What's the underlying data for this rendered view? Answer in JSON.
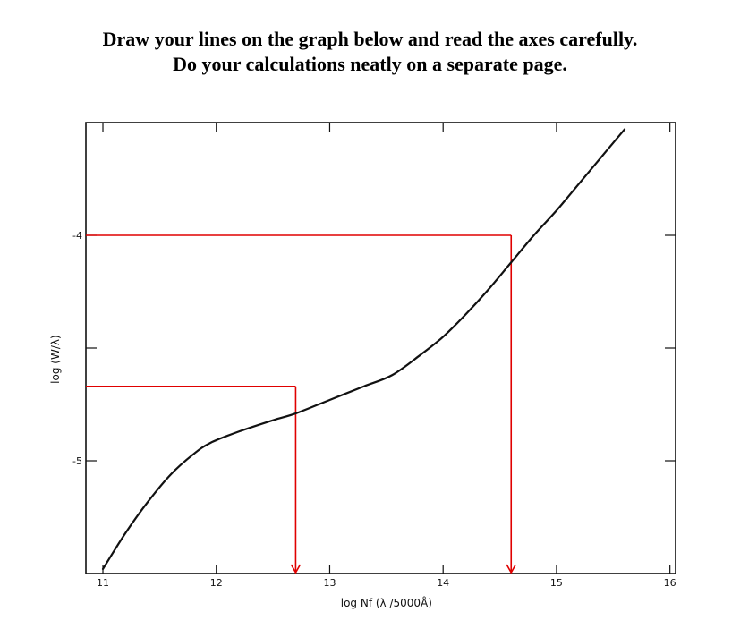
{
  "heading": {
    "line1": "Draw your lines on the graph below and read the axes carefully.",
    "line2": "Do your calculations neatly on a separate page."
  },
  "chart_data": {
    "type": "line",
    "title": "",
    "xlabel": "log Nf (λ /5000Å)",
    "ylabel": "log (W/λ)",
    "xlim": [
      10.85,
      16.05
    ],
    "ylim": [
      -5.5,
      -3.5
    ],
    "xticks": [
      11,
      12,
      13,
      14,
      15,
      16
    ],
    "xtick_labels": [
      "11",
      "12",
      "13",
      "14",
      "15",
      "16"
    ],
    "yticks": [
      -4,
      -5
    ],
    "ytick_labels": [
      "-4",
      "-5"
    ],
    "grid": false,
    "series": [
      {
        "name": "",
        "color": "#111111",
        "x": [
          11.0,
          11.2,
          11.4,
          11.6,
          11.8,
          11.95,
          12.2,
          12.5,
          12.7,
          13.0,
          13.3,
          13.55,
          13.8,
          14.0,
          14.2,
          14.4,
          14.6,
          14.8,
          15.0,
          15.2,
          15.4,
          15.6
        ],
        "y": [
          -5.48,
          -5.32,
          -5.18,
          -5.06,
          -4.97,
          -4.92,
          -4.87,
          -4.82,
          -4.79,
          -4.73,
          -4.67,
          -4.62,
          -4.53,
          -4.45,
          -4.35,
          -4.24,
          -4.12,
          -4.0,
          -3.89,
          -3.77,
          -3.65,
          -3.53
        ]
      }
    ],
    "reading_lines": [
      {
        "color": "#e00000",
        "y": -4.0,
        "x": 14.6
      },
      {
        "color": "#e00000",
        "y": -4.67,
        "x": 12.7
      }
    ]
  }
}
